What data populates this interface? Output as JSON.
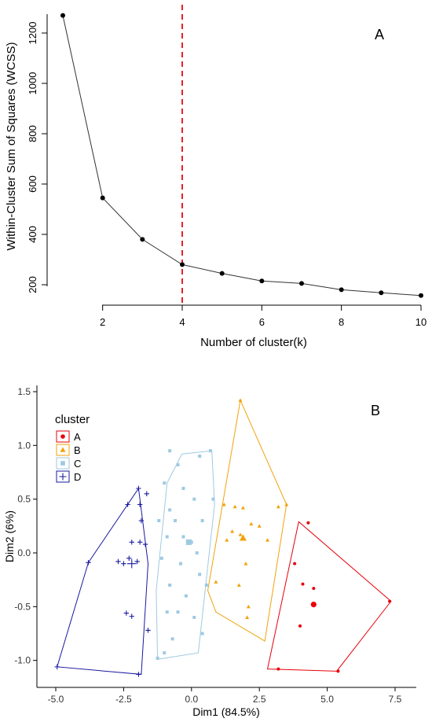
{
  "chart_data": [
    {
      "type": "line",
      "panel_label": "A",
      "xlabel": "Number of cluster(k)",
      "ylabel": "Within-Cluster Sum of Squares (WCSS)",
      "xlim": [
        1,
        10
      ],
      "ylim": [
        150,
        1300
      ],
      "x_ticks": [
        "2",
        "4",
        "6",
        "8",
        "10"
      ],
      "y_ticks": [
        "200",
        "400",
        "600",
        "800",
        "1000",
        "1200"
      ],
      "x": [
        1,
        2,
        3,
        4,
        5,
        6,
        7,
        8,
        9,
        10
      ],
      "values": [
        1270,
        545,
        380,
        280,
        245,
        215,
        205,
        180,
        168,
        157
      ],
      "reference_line": {
        "x": 4,
        "style": "dashed",
        "color": "#e8202a"
      },
      "grid": false
    },
    {
      "type": "scatter",
      "panel_label": "B",
      "xlabel": "Dim1 (84.5%)",
      "ylabel": "Dim2 (6%)",
      "xlim": [
        -5.2,
        7.8
      ],
      "ylim": [
        -1.2,
        1.55
      ],
      "x_ticks": [
        "-5.0",
        "-2.5",
        "0.0",
        "2.5",
        "5.0",
        "7.5"
      ],
      "y_ticks": [
        "-1.0",
        "-0.5",
        "0.0",
        "0.5",
        "1.0",
        "1.5"
      ],
      "legend_title": "cluster",
      "legend_position": "top-left",
      "grid": false,
      "series": [
        {
          "name": "A",
          "color": "#e8000b",
          "marker": "circle",
          "points": [
            [
              3.8,
              -0.1
            ],
            [
              4.3,
              0.28
            ],
            [
              4.5,
              -0.33
            ],
            [
              4.0,
              -0.68
            ],
            [
              3.2,
              -1.08
            ],
            [
              7.3,
              -0.45
            ],
            [
              5.4,
              -1.1
            ],
            [
              4.1,
              -0.29
            ]
          ],
          "hull": [
            [
              3.95,
              0.29
            ],
            [
              7.35,
              -0.45
            ],
            [
              5.35,
              -1.1
            ],
            [
              2.8,
              -1.08
            ]
          ],
          "centroid": [
            4.5,
            -0.48
          ]
        },
        {
          "name": "B",
          "color": "#f0a30a",
          "marker": "triangle",
          "points": [
            [
              1.6,
              0.43
            ],
            [
              1.8,
              1.42
            ],
            [
              1.2,
              0.45
            ],
            [
              1.9,
              0.42
            ],
            [
              3.2,
              0.43
            ],
            [
              2.2,
              0.27
            ],
            [
              2.8,
              0.12
            ],
            [
              1.5,
              0.2
            ],
            [
              1.8,
              0.17
            ],
            [
              2.5,
              0.25
            ],
            [
              1.3,
              0.12
            ],
            [
              2.0,
              -0.1
            ],
            [
              1.75,
              -0.3
            ],
            [
              2.1,
              -0.5
            ],
            [
              2.05,
              -0.6
            ],
            [
              3.5,
              0.45
            ],
            [
              0.9,
              -0.27
            ]
          ],
          "hull": [
            [
              1.8,
              1.42
            ],
            [
              3.5,
              0.45
            ],
            [
              2.7,
              -0.82
            ],
            [
              0.9,
              -0.55
            ],
            [
              0.6,
              -0.35
            ]
          ],
          "centroid": [
            1.9,
            0.14
          ]
        },
        {
          "name": "C",
          "color": "#9ecae1",
          "marker": "square",
          "points": [
            [
              -0.8,
              0.95
            ],
            [
              -0.5,
              0.82
            ],
            [
              0.3,
              0.9
            ],
            [
              0.7,
              0.95
            ],
            [
              -1.0,
              0.65
            ],
            [
              -0.3,
              0.6
            ],
            [
              0.1,
              0.5
            ],
            [
              -0.8,
              0.4
            ],
            [
              -1.2,
              0.3
            ],
            [
              -0.6,
              0.3
            ],
            [
              0.4,
              0.3
            ],
            [
              -0.9,
              0.15
            ],
            [
              -0.3,
              0.15
            ],
            [
              0.0,
              0.1
            ],
            [
              0.2,
              0.0
            ],
            [
              -1.1,
              -0.05
            ],
            [
              -0.4,
              -0.1
            ],
            [
              0.3,
              -0.2
            ],
            [
              -0.8,
              -0.3
            ],
            [
              -0.2,
              -0.4
            ],
            [
              -0.9,
              -0.55
            ],
            [
              0.1,
              -0.6
            ],
            [
              -0.7,
              -0.8
            ],
            [
              0.4,
              -0.75
            ],
            [
              -1.0,
              -0.93
            ],
            [
              -1.25,
              -0.98
            ],
            [
              0.8,
              0.5
            ],
            [
              -0.5,
              -0.55
            ],
            [
              0.55,
              -0.3
            ]
          ],
          "hull": [
            [
              -0.35,
              0.92
            ],
            [
              0.75,
              0.95
            ],
            [
              0.85,
              0.45
            ],
            [
              0.25,
              -0.93
            ],
            [
              -1.25,
              -0.99
            ],
            [
              -1.3,
              -0.35
            ],
            [
              -0.9,
              0.65
            ]
          ],
          "centroid": [
            -0.1,
            0.1
          ]
        },
        {
          "name": "D",
          "color": "#1a1aa0",
          "marker": "plus",
          "points": [
            [
              -1.65,
              0.55
            ],
            [
              -1.95,
              0.6
            ],
            [
              -2.35,
              0.45
            ],
            [
              -1.9,
              0.45
            ],
            [
              -1.85,
              0.3
            ],
            [
              -2.2,
              0.1
            ],
            [
              -1.9,
              0.1
            ],
            [
              -1.7,
              0.08
            ],
            [
              -2.3,
              -0.05
            ],
            [
              -2.0,
              -0.08
            ],
            [
              -3.8,
              -0.09
            ],
            [
              -2.7,
              -0.08
            ],
            [
              -2.5,
              -0.1
            ],
            [
              -2.4,
              -0.56
            ],
            [
              -2.2,
              -0.59
            ],
            [
              -1.6,
              -0.72
            ],
            [
              -1.95,
              -1.13
            ],
            [
              -4.95,
              -1.06
            ]
          ],
          "hull": [
            [
              -1.95,
              0.6
            ],
            [
              -1.6,
              -0.1
            ],
            [
              -1.85,
              -1.13
            ],
            [
              -4.95,
              -1.06
            ],
            [
              -3.8,
              -0.09
            ]
          ],
          "centroid": [
            -2.2,
            -0.1
          ]
        }
      ]
    }
  ]
}
